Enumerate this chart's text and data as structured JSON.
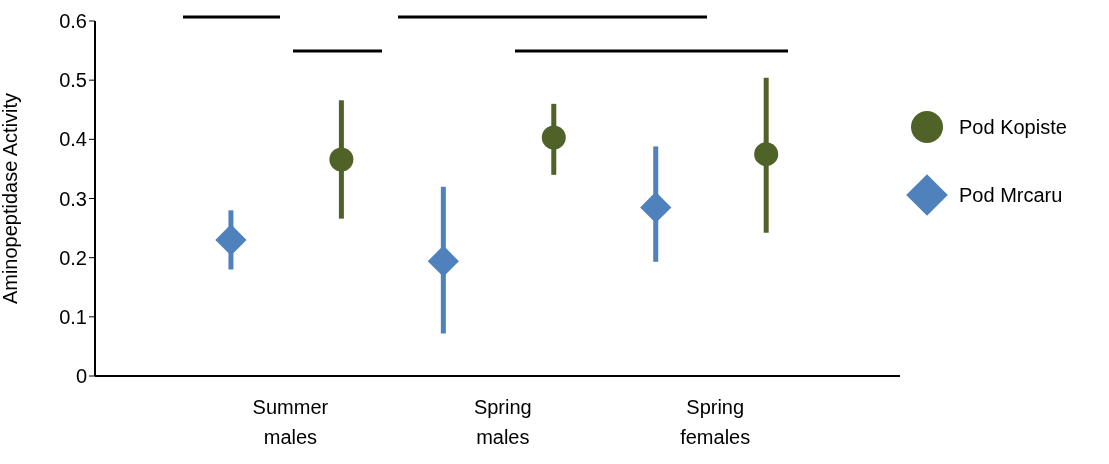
{
  "chart_data": {
    "type": "scatter",
    "ylabel": "Aminopeptidase Activity",
    "categories": [
      "Summer males",
      "Spring males",
      "Spring females"
    ],
    "series": [
      {
        "name": "Pod Mrcaru",
        "color": "#4f81bd",
        "marker": "diamond",
        "values": [
          0.23,
          0.194,
          0.285
        ],
        "errors": [
          [
            0.18,
            0.28
          ],
          [
            0.072,
            0.32
          ],
          [
            0.193,
            0.388
          ]
        ]
      },
      {
        "name": "Pod Kopiste",
        "color": "#4f6228",
        "marker": "circle",
        "values": [
          0.366,
          0.403,
          0.375
        ],
        "errors": [
          [
            0.266,
            0.466
          ],
          [
            0.34,
            0.46
          ],
          [
            0.242,
            0.504
          ]
        ]
      }
    ],
    "ylim": [
      0,
      0.6
    ],
    "yticks": [
      0,
      0.1,
      0.2,
      0.3,
      0.4,
      0.5,
      0.6
    ],
    "grid": false,
    "legend": "right"
  }
}
